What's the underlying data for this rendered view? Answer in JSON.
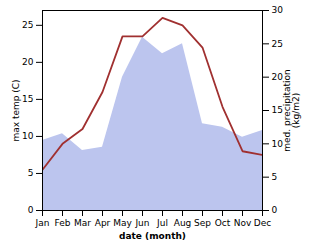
{
  "chart_data": {
    "type": "line",
    "categories": [
      "Jan",
      "Feb",
      "Mar",
      "Apr",
      "May",
      "Jun",
      "Jul",
      "Aug",
      "Sep",
      "Oct",
      "Nov",
      "Dec"
    ],
    "series": [
      {
        "type": "area",
        "axis": "y2",
        "color": "#bcc5ee",
        "values": [
          10.5,
          11.5,
          9.0,
          9.5,
          20.0,
          26.0,
          23.5,
          25.0,
          13.0,
          12.5,
          11.0,
          12.0
        ]
      },
      {
        "type": "line",
        "axis": "y",
        "color": "#a03030",
        "values": [
          5.5,
          9.0,
          11.0,
          16.0,
          23.5,
          23.5,
          26.0,
          25.0,
          22.0,
          14.0,
          8.0,
          7.5
        ]
      }
    ],
    "xlabel": "date (month)",
    "ylabel": "max temp (C)",
    "y2label": "med. precipitation\n(kg/m2)",
    "ylim": [
      0,
      27
    ],
    "yticks": [
      0,
      5,
      10,
      15,
      20,
      25
    ],
    "y2lim": [
      0,
      30
    ],
    "y2ticks": [
      0,
      5,
      10,
      15,
      20,
      25,
      30
    ]
  }
}
